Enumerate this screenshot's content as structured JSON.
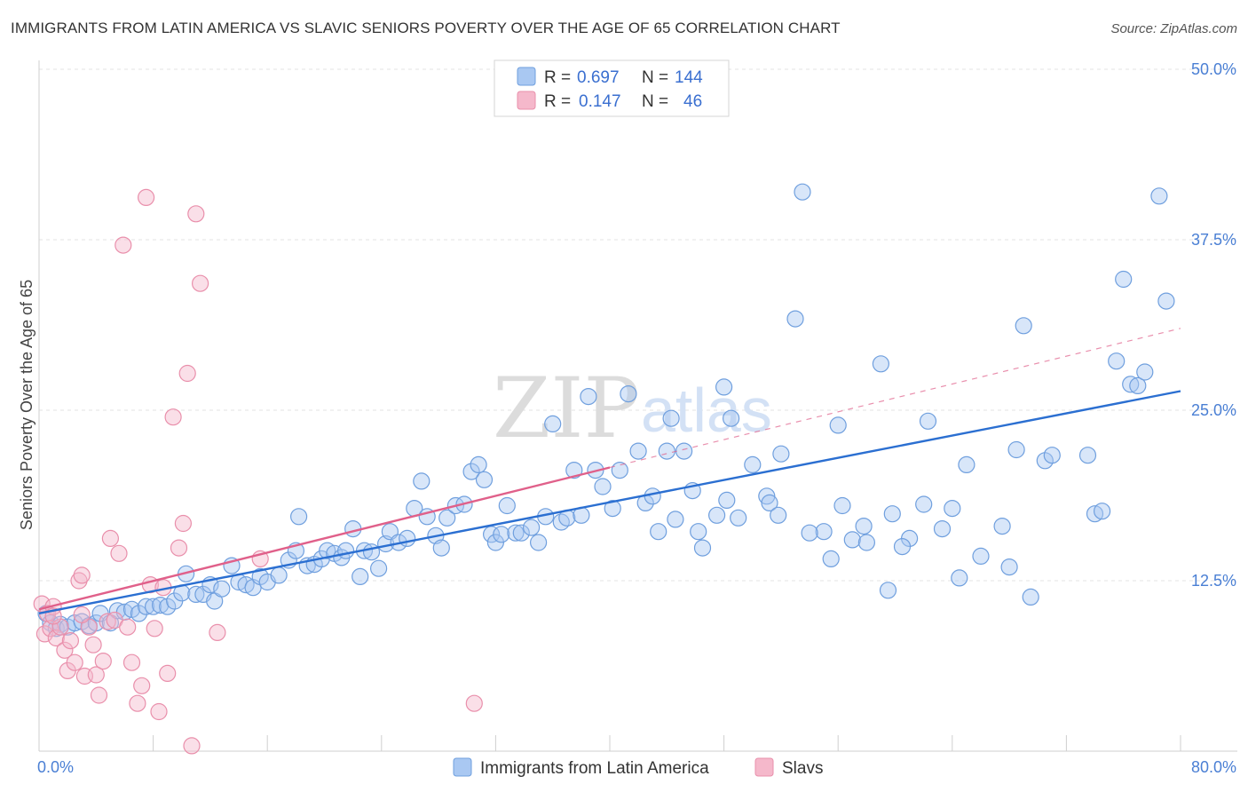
{
  "header": {
    "title": "IMMIGRANTS FROM LATIN AMERICA VS SLAVIC SENIORS POVERTY OVER THE AGE OF 65 CORRELATION CHART",
    "source": "Source: ZipAtlas.com"
  },
  "watermark": {
    "zip": "ZIP",
    "atlas": "atlas"
  },
  "legend_top": {
    "rows": [
      {
        "r_label": "R =",
        "r_value": "0.697",
        "n_label": "N =",
        "n_value": "144",
        "color": "#a9c8f2"
      },
      {
        "r_label": "R =",
        "r_value": "0.147",
        "n_label": "N =",
        "n_value": "46",
        "color": "#f5b8cb"
      }
    ]
  },
  "chart_data": {
    "type": "scatter",
    "title": "IMMIGRANTS FROM LATIN AMERICA VS SLAVIC SENIORS POVERTY OVER THE AGE OF 65 CORRELATION CHART",
    "xlabel": "",
    "ylabel": "Seniors Poverty Over the Age of 65",
    "xlim": [
      0,
      80
    ],
    "ylim": [
      0,
      50
    ],
    "x_tick_labels": [
      "0.0%",
      "80.0%"
    ],
    "y_tick_labels": [
      "12.5%",
      "25.0%",
      "37.5%",
      "50.0%"
    ],
    "y_tick_values": [
      12.5,
      25.0,
      37.5,
      50.0
    ],
    "grid": true,
    "legend_position": "bottom-center",
    "series": [
      {
        "name": "Immigrants from Latin America",
        "color": "#a9c8f2",
        "stroke": "#6f9fde",
        "trend_color": "#2b6fd1",
        "trend": {
          "x0": 0,
          "y0": 10.1,
          "x1": 80,
          "y1": 26.4
        },
        "points": [
          [
            0.5,
            10.1
          ],
          [
            0.8,
            9.4
          ],
          [
            1.2,
            9.0
          ],
          [
            1.5,
            9.3
          ],
          [
            2.0,
            9.1
          ],
          [
            2.5,
            9.4
          ],
          [
            3.0,
            9.5
          ],
          [
            3.5,
            9.2
          ],
          [
            4.0,
            9.4
          ],
          [
            4.3,
            10.1
          ],
          [
            5.0,
            9.4
          ],
          [
            5.5,
            10.3
          ],
          [
            6.0,
            10.2
          ],
          [
            6.5,
            10.4
          ],
          [
            7.0,
            10.1
          ],
          [
            7.5,
            10.6
          ],
          [
            8.0,
            10.6
          ],
          [
            8.5,
            10.7
          ],
          [
            9.0,
            10.6
          ],
          [
            9.5,
            11.0
          ],
          [
            10.0,
            11.6
          ],
          [
            10.3,
            13.0
          ],
          [
            11.0,
            11.5
          ],
          [
            11.5,
            11.5
          ],
          [
            12.0,
            12.2
          ],
          [
            12.3,
            11.0
          ],
          [
            12.8,
            11.9
          ],
          [
            13.5,
            13.6
          ],
          [
            14.0,
            12.4
          ],
          [
            14.5,
            12.2
          ],
          [
            15.0,
            12.0
          ],
          [
            15.5,
            12.8
          ],
          [
            16.0,
            12.4
          ],
          [
            16.8,
            12.9
          ],
          [
            17.5,
            14.0
          ],
          [
            18.0,
            14.7
          ],
          [
            18.2,
            17.2
          ],
          [
            18.8,
            13.6
          ],
          [
            19.3,
            13.7
          ],
          [
            19.8,
            14.1
          ],
          [
            20.2,
            14.7
          ],
          [
            20.7,
            14.5
          ],
          [
            21.2,
            14.2
          ],
          [
            21.5,
            14.7
          ],
          [
            22.0,
            16.3
          ],
          [
            22.5,
            12.8
          ],
          [
            22.8,
            14.7
          ],
          [
            23.3,
            14.6
          ],
          [
            23.8,
            13.4
          ],
          [
            24.3,
            15.2
          ],
          [
            24.6,
            16.1
          ],
          [
            25.2,
            15.3
          ],
          [
            25.8,
            15.6
          ],
          [
            26.3,
            17.8
          ],
          [
            26.8,
            19.8
          ],
          [
            27.2,
            17.2
          ],
          [
            27.8,
            15.8
          ],
          [
            28.2,
            14.9
          ],
          [
            28.6,
            17.1
          ],
          [
            29.2,
            18.0
          ],
          [
            29.8,
            18.1
          ],
          [
            30.3,
            20.5
          ],
          [
            30.8,
            21.0
          ],
          [
            31.2,
            19.9
          ],
          [
            31.7,
            15.9
          ],
          [
            32.0,
            15.3
          ],
          [
            32.4,
            15.9
          ],
          [
            32.8,
            18.0
          ],
          [
            33.4,
            16.0
          ],
          [
            33.8,
            16.0
          ],
          [
            34.5,
            16.4
          ],
          [
            35.0,
            15.3
          ],
          [
            35.5,
            17.2
          ],
          [
            36.0,
            24.0
          ],
          [
            36.6,
            16.8
          ],
          [
            37.0,
            17.1
          ],
          [
            37.5,
            20.6
          ],
          [
            38.0,
            17.3
          ],
          [
            38.5,
            26.0
          ],
          [
            39.0,
            20.6
          ],
          [
            39.5,
            19.4
          ],
          [
            40.2,
            17.8
          ],
          [
            40.7,
            20.6
          ],
          [
            41.3,
            26.2
          ],
          [
            42.0,
            22.0
          ],
          [
            42.5,
            18.2
          ],
          [
            43.0,
            18.7
          ],
          [
            43.4,
            16.1
          ],
          [
            44.0,
            22.0
          ],
          [
            44.3,
            24.4
          ],
          [
            44.6,
            17.0
          ],
          [
            45.2,
            22.0
          ],
          [
            45.8,
            19.1
          ],
          [
            46.2,
            16.1
          ],
          [
            46.5,
            14.9
          ],
          [
            47.5,
            17.3
          ],
          [
            48.0,
            26.7
          ],
          [
            48.2,
            18.4
          ],
          [
            48.5,
            24.4
          ],
          [
            49.0,
            17.1
          ],
          [
            50.0,
            21.0
          ],
          [
            51.0,
            18.7
          ],
          [
            51.2,
            18.2
          ],
          [
            51.8,
            17.3
          ],
          [
            52.0,
            21.8
          ],
          [
            53.0,
            31.7
          ],
          [
            53.5,
            41.0
          ],
          [
            55.0,
            16.1
          ],
          [
            55.5,
            14.1
          ],
          [
            56.0,
            23.9
          ],
          [
            56.3,
            18.0
          ],
          [
            57.0,
            15.5
          ],
          [
            57.8,
            16.5
          ],
          [
            58.0,
            15.3
          ],
          [
            59.0,
            28.4
          ],
          [
            59.5,
            11.8
          ],
          [
            59.8,
            17.4
          ],
          [
            61.0,
            15.6
          ],
          [
            62.0,
            18.1
          ],
          [
            62.3,
            24.2
          ],
          [
            63.3,
            16.3
          ],
          [
            64.0,
            17.8
          ],
          [
            64.5,
            12.7
          ],
          [
            66.0,
            14.3
          ],
          [
            67.5,
            16.5
          ],
          [
            68.0,
            13.5
          ],
          [
            68.5,
            22.1
          ],
          [
            69.0,
            31.2
          ],
          [
            69.5,
            11.3
          ],
          [
            70.5,
            21.3
          ],
          [
            71.0,
            21.7
          ],
          [
            73.5,
            21.7
          ],
          [
            74.0,
            17.4
          ],
          [
            74.5,
            17.6
          ],
          [
            75.5,
            28.6
          ],
          [
            76.0,
            34.6
          ],
          [
            76.5,
            26.9
          ],
          [
            77.0,
            26.8
          ],
          [
            77.5,
            27.8
          ],
          [
            78.5,
            40.7
          ],
          [
            79.0,
            33.0
          ],
          [
            54.0,
            16.0
          ],
          [
            60.5,
            15.0
          ],
          [
            65.0,
            21.0
          ]
        ]
      },
      {
        "name": "Slavs",
        "color": "#f5b8cb",
        "stroke": "#e98fab",
        "trend_color": "#e0608a",
        "trend": {
          "x0": 0,
          "y0": 10.4,
          "x1": 40,
          "y1": 20.8
        },
        "trend_extension": {
          "x0": 40,
          "y0": 20.8,
          "x1": 80,
          "y1": 31.0
        },
        "points": [
          [
            0.2,
            10.8
          ],
          [
            0.4,
            8.6
          ],
          [
            0.6,
            10.1
          ],
          [
            0.8,
            9.0
          ],
          [
            1.0,
            10.6
          ],
          [
            1.2,
            8.3
          ],
          [
            1.5,
            9.1
          ],
          [
            1.8,
            7.4
          ],
          [
            2.0,
            5.9
          ],
          [
            2.2,
            8.1
          ],
          [
            2.5,
            6.5
          ],
          [
            2.8,
            12.5
          ],
          [
            3.0,
            12.9
          ],
          [
            3.2,
            5.5
          ],
          [
            3.5,
            9.1
          ],
          [
            3.8,
            7.8
          ],
          [
            4.0,
            5.6
          ],
          [
            4.2,
            4.1
          ],
          [
            4.5,
            6.6
          ],
          [
            4.8,
            9.5
          ],
          [
            5.0,
            15.6
          ],
          [
            5.3,
            9.6
          ],
          [
            5.6,
            14.5
          ],
          [
            5.9,
            37.1
          ],
          [
            6.2,
            9.1
          ],
          [
            6.5,
            6.5
          ],
          [
            6.9,
            3.5
          ],
          [
            7.2,
            4.8
          ],
          [
            7.5,
            40.6
          ],
          [
            7.8,
            12.2
          ],
          [
            8.1,
            9.0
          ],
          [
            8.4,
            2.9
          ],
          [
            8.7,
            12.0
          ],
          [
            9.0,
            5.7
          ],
          [
            9.4,
            24.5
          ],
          [
            9.8,
            14.9
          ],
          [
            10.1,
            16.7
          ],
          [
            10.4,
            27.7
          ],
          [
            10.7,
            0.4
          ],
          [
            11.0,
            39.4
          ],
          [
            11.3,
            34.3
          ],
          [
            12.5,
            8.7
          ],
          [
            15.5,
            14.1
          ],
          [
            30.5,
            3.5
          ],
          [
            1.0,
            9.9
          ],
          [
            3.0,
            10.0
          ]
        ]
      }
    ]
  },
  "legend_bottom": {
    "items": [
      {
        "label": "Immigrants from Latin America",
        "color": "#a9c8f2"
      },
      {
        "label": "Slavs",
        "color": "#f5b8cb"
      }
    ]
  }
}
